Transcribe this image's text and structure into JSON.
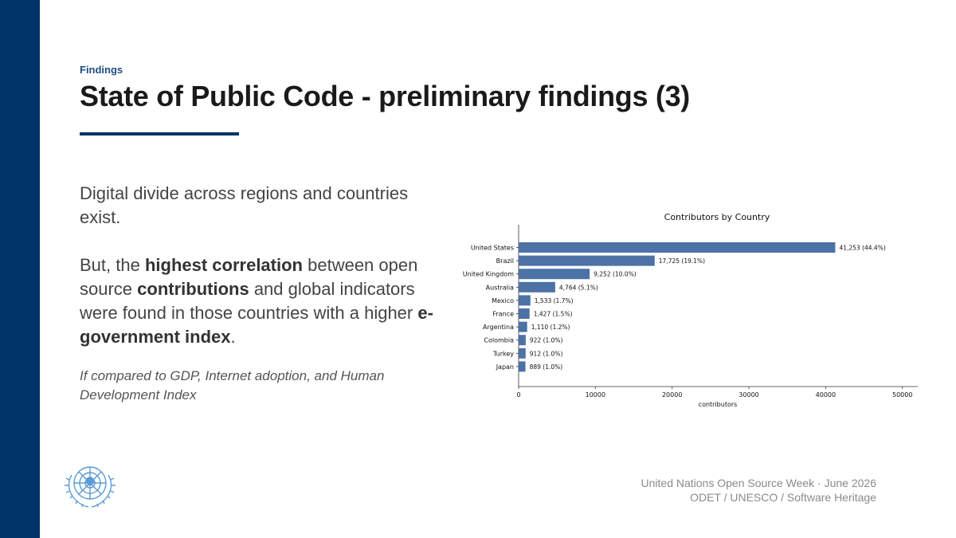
{
  "slide": {
    "section_label": "Findings",
    "title": "State of Public Code - preliminary findings (3)",
    "para1": "Digital divide across regions and countries exist.",
    "para2": {
      "t1": "But, the ",
      "b1": "highest correlation",
      "t2": " between open source ",
      "b2": "contributions",
      "t3": " and global indicators were found in those countries with a higher ",
      "b3": "e-government index",
      "t4": "."
    },
    "note": "If compared to GDP, Internet adoption, and Human Development Index",
    "footer_line1": "United Nations Open Source Week · June 2026",
    "footer_line2": "ODET / UNESCO / Software Heritage",
    "logo_icon": "un-emblem-icon",
    "colors": {
      "sidebar": "#003366",
      "bar": "#4c72a6",
      "accent": "#1d4d80"
    }
  },
  "chart_data": {
    "type": "bar",
    "orientation": "horizontal",
    "title": "Contributors by Country",
    "xlabel": "contributors",
    "ylabel": "",
    "xlim": [
      0,
      52000
    ],
    "xticks": [
      0,
      10000,
      20000,
      30000,
      40000,
      50000
    ],
    "categories": [
      "United States",
      "Brazil",
      "United Kingdom",
      "Australia",
      "Mexico",
      "France",
      "Argentina",
      "Colombia",
      "Turkey",
      "Japan"
    ],
    "values": [
      41253,
      17725,
      9252,
      4764,
      1533,
      1427,
      1110,
      922,
      912,
      889
    ],
    "data_labels": [
      "41,253 (44.4%)",
      "17,725 (19.1%)",
      "9,252 (10.0%)",
      "4,764 (5.1%)",
      "1,533 (1.7%)",
      "1,427 (1.5%)",
      "1,110 (1.2%)",
      "922 (1.0%)",
      "912 (1.0%)",
      "889 (1.0%)"
    ],
    "grid": false
  }
}
